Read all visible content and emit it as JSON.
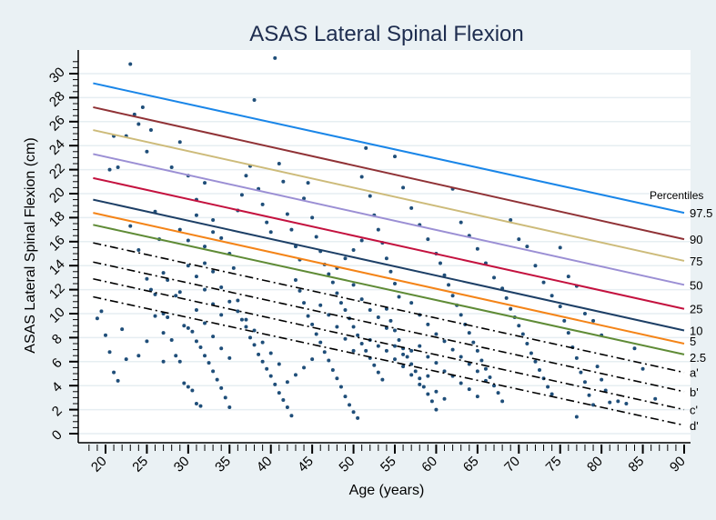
{
  "chart_data": {
    "type": "scatter",
    "title": "ASAS Lateral Spinal Flexion",
    "xlabel": "Age (years)",
    "ylabel": "ASAS Lateral Spinal Flexion (cm)",
    "xlim": [
      17,
      91
    ],
    "ylim": [
      -0.7,
      32.6
    ],
    "x_ticks": [
      20,
      25,
      30,
      35,
      40,
      45,
      50,
      55,
      60,
      65,
      70,
      75,
      80,
      85,
      90
    ],
    "y_ticks": [
      0,
      2,
      4,
      6,
      8,
      10,
      12,
      14,
      16,
      18,
      20,
      22,
      24,
      26,
      28,
      30
    ],
    "grid": true,
    "legend_title": "Percentiles",
    "legend_placement": "right",
    "point_color": "#1f4e79",
    "lines": [
      {
        "name": "97.5",
        "color": "#1a86e8",
        "style": "solid",
        "x": [
          18.5,
          90
        ],
        "y": [
          29.2,
          18.4
        ]
      },
      {
        "name": "90",
        "color": "#903236",
        "style": "solid",
        "x": [
          18.5,
          90
        ],
        "y": [
          27.2,
          16.2
        ]
      },
      {
        "name": "75",
        "color": "#cdbb7a",
        "style": "solid",
        "x": [
          18.5,
          90
        ],
        "y": [
          25.3,
          14.4
        ]
      },
      {
        "name": "50",
        "color": "#9b8fd4",
        "style": "solid",
        "x": [
          18.5,
          90
        ],
        "y": [
          23.3,
          12.4
        ]
      },
      {
        "name": "25",
        "color": "#c4123f",
        "style": "solid",
        "x": [
          18.5,
          90
        ],
        "y": [
          21.3,
          10.4
        ]
      },
      {
        "name": "10",
        "color": "#1d3f66",
        "style": "solid",
        "x": [
          18.5,
          90
        ],
        "y": [
          19.5,
          8.6
        ]
      },
      {
        "name": "5",
        "color": "#f48418",
        "style": "solid",
        "x": [
          18.5,
          90
        ],
        "y": [
          18.4,
          7.5
        ]
      },
      {
        "name": "2.5",
        "color": "#5f8b36",
        "style": "solid",
        "x": [
          18.5,
          90
        ],
        "y": [
          17.4,
          6.6
        ]
      },
      {
        "name": "a'",
        "color": "#000000",
        "style": "dashdot",
        "x": [
          18.5,
          90
        ],
        "y": [
          15.9,
          5.1
        ]
      },
      {
        "name": "b'",
        "color": "#000000",
        "style": "dashdot",
        "x": [
          18.5,
          90
        ],
        "y": [
          14.3,
          3.5
        ]
      },
      {
        "name": "c'",
        "color": "#000000",
        "style": "dashdot",
        "x": [
          18.5,
          90
        ],
        "y": [
          12.9,
          2.0
        ]
      },
      {
        "name": "d'",
        "color": "#000000",
        "style": "dashdot",
        "x": [
          18.5,
          90
        ],
        "y": [
          11.4,
          0.7
        ]
      }
    ],
    "points": [
      [
        19,
        9.6
      ],
      [
        19.5,
        10.2
      ],
      [
        20,
        8.2
      ],
      [
        20.5,
        6.8
      ],
      [
        21,
        5.1
      ],
      [
        21.5,
        4.4
      ],
      [
        22,
        8.7
      ],
      [
        22.5,
        6.2
      ],
      [
        23,
        30.8
      ],
      [
        21,
        24.8
      ],
      [
        20.5,
        22
      ],
      [
        21.5,
        22.2
      ],
      [
        22.5,
        24.8
      ],
      [
        23.5,
        26.6
      ],
      [
        24,
        25.8
      ],
      [
        24.5,
        27.2
      ],
      [
        25,
        23.5
      ],
      [
        25.5,
        25.3
      ],
      [
        26,
        18.5
      ],
      [
        26.5,
        16.2
      ],
      [
        23,
        17.3
      ],
      [
        24,
        15.3
      ],
      [
        25,
        12.9
      ],
      [
        25.5,
        12.0
      ],
      [
        26,
        11.6
      ],
      [
        27,
        10.0
      ],
      [
        27.5,
        9.7
      ],
      [
        28,
        7.8
      ],
      [
        28.5,
        6.5
      ],
      [
        29,
        6.0
      ],
      [
        29.5,
        4.2
      ],
      [
        30,
        3.9
      ],
      [
        30.5,
        3.6
      ],
      [
        31,
        2.5
      ],
      [
        31.5,
        2.3
      ],
      [
        28,
        22.2
      ],
      [
        29,
        24.3
      ],
      [
        30,
        21.5
      ],
      [
        31,
        19.5
      ],
      [
        32,
        20.9
      ],
      [
        27,
        13.4
      ],
      [
        27.5,
        12.8
      ],
      [
        28.5,
        11.5
      ],
      [
        29,
        11.8
      ],
      [
        29.5,
        9.0
      ],
      [
        30,
        8.8
      ],
      [
        30.5,
        8.5
      ],
      [
        31,
        7.7
      ],
      [
        31.5,
        7.2
      ],
      [
        32,
        6.5
      ],
      [
        32.5,
        5.9
      ],
      [
        33,
        5.2
      ],
      [
        33.5,
        4.5
      ],
      [
        34,
        3.8
      ],
      [
        34.5,
        3.0
      ],
      [
        35,
        2.2
      ],
      [
        32,
        14.2
      ],
      [
        33,
        13.5
      ],
      [
        34,
        12.2
      ],
      [
        35,
        11.0
      ],
      [
        33,
        17.8
      ],
      [
        34,
        16.3
      ],
      [
        35,
        15.0
      ],
      [
        35.5,
        13.8
      ],
      [
        36,
        18.6
      ],
      [
        36.5,
        19.9
      ],
      [
        37,
        21.5
      ],
      [
        37.5,
        22.3
      ],
      [
        38,
        27.8
      ],
      [
        38.5,
        20.4
      ],
      [
        39,
        19.1
      ],
      [
        39.5,
        17.6
      ],
      [
        40,
        16.8
      ],
      [
        40.5,
        31.3
      ],
      [
        41,
        22.5
      ],
      [
        41.5,
        21.0
      ],
      [
        42,
        18.3
      ],
      [
        42.5,
        17.0
      ],
      [
        43,
        15.6
      ],
      [
        43.5,
        14.5
      ],
      [
        36,
        10.2
      ],
      [
        36.5,
        9.5
      ],
      [
        37,
        8.9
      ],
      [
        37.5,
        8.0
      ],
      [
        38,
        7.4
      ],
      [
        38.5,
        6.6
      ],
      [
        39,
        6.0
      ],
      [
        39.5,
        5.4
      ],
      [
        40,
        4.8
      ],
      [
        40.5,
        4.1
      ],
      [
        41,
        3.4
      ],
      [
        41.5,
        2.8
      ],
      [
        42,
        2.2
      ],
      [
        42.5,
        1.5
      ],
      [
        43,
        12.8
      ],
      [
        43.5,
        11.9
      ],
      [
        44,
        10.9
      ],
      [
        44.5,
        9.8
      ],
      [
        45,
        9.1
      ],
      [
        45.5,
        8.3
      ],
      [
        44,
        19.6
      ],
      [
        44.5,
        20.9
      ],
      [
        45,
        18.0
      ],
      [
        45.5,
        16.4
      ],
      [
        46,
        15.2
      ],
      [
        46.5,
        14.1
      ],
      [
        47,
        13.3
      ],
      [
        47.5,
        12.6
      ],
      [
        48,
        11.7
      ],
      [
        48.5,
        10.9
      ],
      [
        49,
        10.3
      ],
      [
        49.5,
        9.6
      ],
      [
        50,
        8.9
      ],
      [
        50.5,
        8.2
      ],
      [
        51,
        7.5
      ],
      [
        51.5,
        6.9
      ],
      [
        52,
        6.3
      ],
      [
        52.5,
        5.7
      ],
      [
        53,
        5.1
      ],
      [
        53.5,
        4.5
      ],
      [
        46,
        7.6
      ],
      [
        46.5,
        6.8
      ],
      [
        47,
        6.1
      ],
      [
        47.5,
        5.3
      ],
      [
        48,
        4.6
      ],
      [
        48.5,
        3.9
      ],
      [
        49,
        3.1
      ],
      [
        49.5,
        2.4
      ],
      [
        50,
        1.8
      ],
      [
        50.5,
        1.3
      ],
      [
        51,
        21.4
      ],
      [
        51.5,
        23.8
      ],
      [
        52,
        19.8
      ],
      [
        52.5,
        18.2
      ],
      [
        53,
        17.0
      ],
      [
        53.5,
        15.9
      ],
      [
        54,
        14.6
      ],
      [
        54.5,
        13.5
      ],
      [
        55,
        12.5
      ],
      [
        55.5,
        11.4
      ],
      [
        54,
        10.4
      ],
      [
        54.5,
        9.4
      ],
      [
        55,
        8.6
      ],
      [
        55.5,
        7.8
      ],
      [
        56,
        7.1
      ],
      [
        56.5,
        6.4
      ],
      [
        57,
        5.8
      ],
      [
        57.5,
        5.2
      ],
      [
        58,
        4.6
      ],
      [
        58.5,
        3.9
      ],
      [
        59,
        3.3
      ],
      [
        59.5,
        2.7
      ],
      [
        60,
        2.0
      ],
      [
        55,
        23.1
      ],
      [
        56,
        20.5
      ],
      [
        57,
        18.8
      ],
      [
        58,
        17.4
      ],
      [
        59,
        16.2
      ],
      [
        60,
        15.0
      ],
      [
        60.5,
        14.2
      ],
      [
        61,
        13.2
      ],
      [
        61.5,
        12.4
      ],
      [
        62,
        11.5
      ],
      [
        62.5,
        10.7
      ],
      [
        63,
        9.9
      ],
      [
        63.5,
        9.1
      ],
      [
        64,
        8.4
      ],
      [
        64.5,
        7.6
      ],
      [
        65,
        6.9
      ],
      [
        65.5,
        6.1
      ],
      [
        66,
        5.4
      ],
      [
        66.5,
        4.7
      ],
      [
        67,
        4.0
      ],
      [
        67.5,
        3.4
      ],
      [
        68,
        2.7
      ],
      [
        62,
        20.4
      ],
      [
        63,
        17.6
      ],
      [
        64,
        16.5
      ],
      [
        65,
        15.4
      ],
      [
        66,
        14.2
      ],
      [
        67,
        13.0
      ],
      [
        68,
        12.1
      ],
      [
        68.5,
        11.3
      ],
      [
        69,
        10.4
      ],
      [
        69.5,
        9.7
      ],
      [
        70,
        9.0
      ],
      [
        70.5,
        8.3
      ],
      [
        71,
        7.5
      ],
      [
        71.5,
        6.7
      ],
      [
        72,
        6.0
      ],
      [
        72.5,
        5.3
      ],
      [
        73,
        4.6
      ],
      [
        73.5,
        3.9
      ],
      [
        74,
        3.3
      ],
      [
        69,
        17.8
      ],
      [
        70,
        16.2
      ],
      [
        71,
        15.6
      ],
      [
        72,
        14.0
      ],
      [
        73,
        12.6
      ],
      [
        74,
        11.5
      ],
      [
        75,
        10.6
      ],
      [
        75.5,
        9.4
      ],
      [
        76,
        8.4
      ],
      [
        76.5,
        7.2
      ],
      [
        77,
        6.3
      ],
      [
        77.5,
        5.1
      ],
      [
        78,
        4.3
      ],
      [
        78.5,
        3.2
      ],
      [
        79,
        2.4
      ],
      [
        77,
        1.4
      ],
      [
        80,
        4.5
      ],
      [
        80.5,
        3.6
      ],
      [
        81,
        2.6
      ],
      [
        79.5,
        5.6
      ],
      [
        75,
        15.5
      ],
      [
        76,
        13.1
      ],
      [
        77,
        12.3
      ],
      [
        78,
        10.0
      ],
      [
        79,
        9.4
      ],
      [
        80,
        8.2
      ],
      [
        82,
        2.7
      ],
      [
        83,
        2.5
      ],
      [
        86.5,
        2.9
      ],
      [
        84,
        7.1
      ],
      [
        85,
        5.4
      ],
      [
        30,
        14.0
      ],
      [
        31,
        13.1
      ],
      [
        32,
        12.0
      ],
      [
        33,
        10.8
      ],
      [
        34,
        9.9
      ],
      [
        29,
        17.0
      ],
      [
        30,
        16.1
      ],
      [
        31,
        18.2
      ],
      [
        32,
        15.6
      ],
      [
        33,
        16.8
      ],
      [
        26,
        9.8
      ],
      [
        27,
        8.4
      ],
      [
        27,
        6.0
      ],
      [
        25,
        7.7
      ],
      [
        24,
        6.5
      ],
      [
        48,
        13.8
      ],
      [
        49,
        14.6
      ],
      [
        50,
        15.3
      ],
      [
        51,
        16.1
      ],
      [
        50,
        12.4
      ],
      [
        51,
        11.2
      ],
      [
        52,
        10.3
      ],
      [
        53,
        9.7
      ],
      [
        54,
        8.8
      ],
      [
        55,
        7.3
      ],
      [
        56,
        6.6
      ],
      [
        57,
        6.9
      ],
      [
        58,
        7.3
      ],
      [
        59,
        6.4
      ],
      [
        60,
        5.9
      ],
      [
        61,
        5.2
      ],
      [
        62,
        4.8
      ],
      [
        63,
        4.2
      ],
      [
        64,
        3.7
      ],
      [
        65,
        3.1
      ],
      [
        52,
        7.8
      ],
      [
        53,
        7.3
      ],
      [
        54,
        6.9
      ],
      [
        55,
        6.2
      ],
      [
        56,
        5.6
      ],
      [
        57,
        4.9
      ],
      [
        58,
        4.1
      ],
      [
        59,
        4.8
      ],
      [
        60,
        3.5
      ],
      [
        61,
        2.9
      ],
      [
        45,
        6.2
      ],
      [
        44,
        5.5
      ],
      [
        43,
        4.9
      ],
      [
        42,
        4.3
      ],
      [
        41,
        5.8
      ],
      [
        40,
        6.7
      ],
      [
        39,
        7.6
      ],
      [
        38,
        8.6
      ],
      [
        37,
        9.5
      ],
      [
        36,
        11.1
      ],
      [
        35,
        6.3
      ],
      [
        34,
        7.1
      ],
      [
        33,
        8.1
      ],
      [
        32,
        9.2
      ],
      [
        31,
        10.3
      ],
      [
        46,
        10.7
      ],
      [
        47,
        9.9
      ],
      [
        48,
        8.9
      ],
      [
        49,
        7.9
      ],
      [
        50,
        6.9
      ],
      [
        57,
        10.9
      ],
      [
        58,
        9.9
      ],
      [
        59,
        9.1
      ],
      [
        60,
        8.3
      ],
      [
        61,
        7.7
      ],
      [
        62,
        7.0
      ],
      [
        63,
        6.4
      ],
      [
        64,
        5.8
      ],
      [
        65,
        5.2
      ],
      [
        66,
        4.4
      ]
    ]
  }
}
